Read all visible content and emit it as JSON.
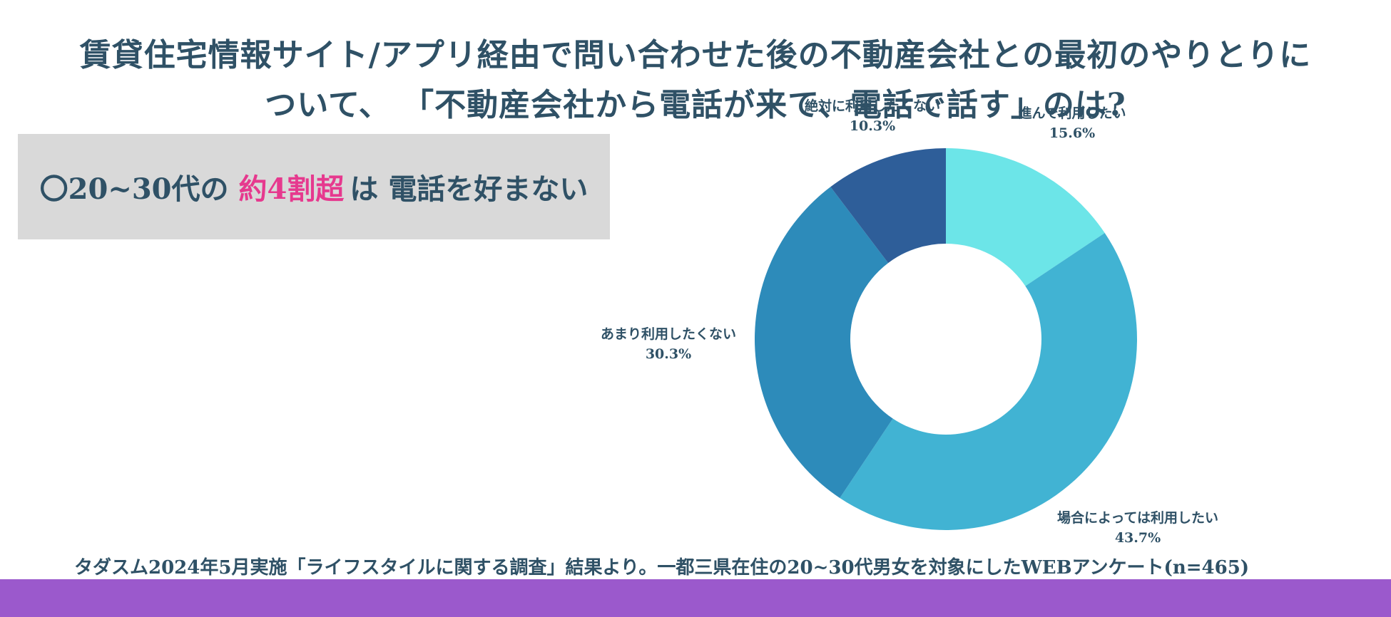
{
  "title": {
    "line1": "賃貸住宅情報サイト/アプリ経由で問い合わせた後の不動産会社との最初のやりとりに",
    "line2": "ついて、 「不動産会社から電話が来て、電話で話す」のは?"
  },
  "callout": {
    "prefix": "〇20~30代の",
    "highlight": "約4割超",
    "suffix_a": "は",
    "suffix_b": "電話を好まない",
    "highlight_color": "#e6398e"
  },
  "chart_data": {
    "type": "pie",
    "donut": true,
    "start": "top, clockwise",
    "slices": [
      {
        "label": "進んで利用したい",
        "value": 15.6,
        "display": "15.6%",
        "color": "#6ce5e8"
      },
      {
        "label": "場合によっては利用したい",
        "value": 43.7,
        "display": "43.7%",
        "color": "#41b3d3"
      },
      {
        "label": "あまり利用したくない",
        "value": 30.3,
        "display": "30.3%",
        "color": "#2d8bba"
      },
      {
        "label": "絶対に利用したくない",
        "value": 10.3,
        "display": "10.3%",
        "color": "#2e5e99"
      }
    ]
  },
  "footnote": "タダスム2024年5月実施「ライフスタイルに関する調査」結果より。一都三県在住の20~30代男女を対象にしたWEBアンケート(n=465)",
  "colors": {
    "text": "#2f5166",
    "callout_bg": "#d9d9d9",
    "bottom_bar": "#9b59cc"
  }
}
